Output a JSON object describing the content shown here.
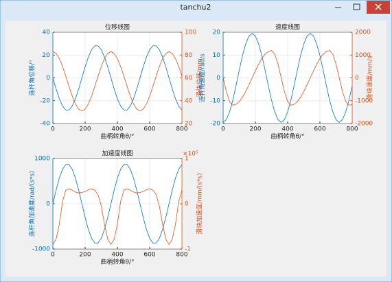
{
  "window": {
    "title": "tanchu2"
  },
  "chart_data": [
    {
      "type": "line",
      "title": "位移线图",
      "xlabel": "曲柄转角θ/°",
      "ylabel": "连杆角位移/°",
      "y2label": "滑块位移/mm",
      "x": [
        0,
        20,
        40,
        60,
        80,
        100,
        120,
        140,
        160,
        180,
        200,
        220,
        240,
        260,
        280,
        300,
        320,
        340,
        360,
        380,
        400,
        420,
        440,
        460,
        480,
        500,
        520,
        540,
        560,
        580,
        600,
        620,
        640,
        660,
        680,
        700,
        720,
        740,
        760,
        780,
        800
      ],
      "xlim": [
        0,
        800
      ],
      "xticks": [
        0,
        200,
        400,
        600,
        800
      ],
      "ylim": [
        -40,
        40
      ],
      "yticks": [
        -40,
        -20,
        0,
        20,
        40
      ],
      "y2lim": [
        20,
        100
      ],
      "y2ticks": [
        20,
        40,
        60,
        80,
        100
      ],
      "grid": true,
      "series": [
        {
          "color": "#0072bd",
          "values": [
            0,
            -9.7,
            -18.3,
            -24.7,
            -28.1,
            -28.1,
            -24.7,
            -18.3,
            -9.7,
            0,
            9.7,
            18.3,
            24.7,
            28.1,
            28.1,
            24.7,
            18.3,
            9.7,
            0,
            -9.7,
            -18.3,
            -24.7,
            -28.1,
            -28.1,
            -24.7,
            -18.3,
            -9.7,
            0,
            9.7,
            18.3,
            24.7,
            28.1,
            28.1,
            24.7,
            18.3,
            9.7,
            0,
            -9.7,
            -18.3,
            -24.7,
            -28.1
          ]
        },
        {
          "color": "#d95319",
          "axis": "y2",
          "values": [
            83,
            81.4,
            76.9,
            70,
            61.5,
            52.5,
            44,
            37.1,
            32.6,
            31,
            32.6,
            37.1,
            44,
            52.5,
            61.5,
            70,
            76.9,
            81.4,
            83,
            81.4,
            76.9,
            70,
            61.5,
            52.5,
            44,
            37.1,
            32.6,
            31,
            32.6,
            37.1,
            44,
            52.5,
            61.5,
            70,
            76.9,
            81.4,
            83,
            81.4,
            76.9,
            70,
            61.5
          ]
        }
      ]
    },
    {
      "type": "line",
      "title": "速度线图",
      "xlabel": "曲柄转角θ/°",
      "ylabel": "连杆角速度/rad/s",
      "y2label": "滑块速度/mm/s",
      "x": [
        0,
        20,
        40,
        60,
        80,
        100,
        120,
        140,
        160,
        180,
        200,
        220,
        240,
        260,
        280,
        300,
        320,
        340,
        360,
        380,
        400,
        420,
        440,
        460,
        480,
        500,
        520,
        540,
        560,
        580,
        600,
        620,
        640,
        660,
        680,
        700,
        720,
        740,
        760,
        780,
        800
      ],
      "xlim": [
        0,
        800
      ],
      "xticks": [
        0,
        200,
        400,
        600,
        800
      ],
      "ylim": [
        -20,
        20
      ],
      "yticks": [
        -20,
        -10,
        0,
        10,
        20
      ],
      "y2lim": [
        -2000,
        2000
      ],
      "y2ticks": [
        -2000,
        -1000,
        0,
        1000,
        2000
      ],
      "grid": true,
      "series": [
        {
          "color": "#0072bd",
          "values": [
            -19.5,
            -18.3,
            -14.9,
            -9.8,
            -3.4,
            3.4,
            9.8,
            14.9,
            18.3,
            19.5,
            18.3,
            14.9,
            9.8,
            3.4,
            -3.4,
            -9.8,
            -14.9,
            -18.3,
            -19.5,
            -18.3,
            -14.9,
            -9.8,
            -3.4,
            3.4,
            9.8,
            14.9,
            18.3,
            19.5,
            18.3,
            14.9,
            9.8,
            3.4,
            -3.4,
            -9.8,
            -14.9,
            -18.3,
            -19.5,
            -18.3,
            -14.9,
            -9.8,
            -3.4
          ]
        },
        {
          "color": "#d95319",
          "axis": "y2",
          "values": [
            0,
            -600,
            -1039,
            -1200,
            -1159,
            -1039,
            -849,
            -600,
            -311,
            0,
            311,
            600,
            849,
            1039,
            1159,
            1200,
            1039,
            600,
            0,
            -600,
            -1039,
            -1200,
            -1159,
            -1039,
            -849,
            -600,
            -311,
            0,
            311,
            600,
            849,
            1039,
            1159,
            1200,
            1039,
            600,
            0,
            -600,
            -1039,
            -1200,
            -1159
          ]
        }
      ]
    },
    {
      "type": "line",
      "title": "加速度线图",
      "xlabel": "曲柄转角θ/°",
      "ylabel": "连杆角加速度/rad/(s*s)",
      "y2label": "滑块加速度/mm/(s*s)",
      "y2exponent": "×10⁵",
      "x": [
        0,
        20,
        40,
        60,
        80,
        100,
        120,
        140,
        160,
        180,
        200,
        220,
        240,
        260,
        280,
        300,
        320,
        340,
        360,
        380,
        400,
        420,
        440,
        460,
        480,
        500,
        520,
        540,
        560,
        580,
        600,
        620,
        640,
        660,
        680,
        700,
        720,
        740,
        760,
        780,
        800
      ],
      "xlim": [
        0,
        800
      ],
      "xticks": [
        0,
        200,
        400,
        600,
        800
      ],
      "ylim": [
        -1000,
        1000
      ],
      "yticks": [
        -1000,
        0,
        1000
      ],
      "y2lim": [
        -1,
        1
      ],
      "y2ticks": [
        -1,
        0,
        1
      ],
      "grid": true,
      "series": [
        {
          "color": "#0072bd",
          "values": [
            0,
            301,
            566,
            762,
            867,
            867,
            762,
            566,
            301,
            0,
            -301,
            -566,
            -762,
            -867,
            -867,
            -762,
            -566,
            -301,
            0,
            301,
            566,
            762,
            867,
            867,
            762,
            566,
            301,
            0,
            -301,
            -566,
            -762,
            -867,
            -867,
            -762,
            -566,
            -301,
            0,
            301,
            566,
            762,
            867
          ]
        },
        {
          "color": "#d95319",
          "axis": "y2",
          "values": [
            -0.9,
            -0.78,
            -0.45,
            0.05,
            0.3,
            0.33,
            0.3,
            0.26,
            0.24,
            0.25,
            0.27,
            0.31,
            0.33,
            0.3,
            0.2,
            -0.05,
            -0.45,
            -0.78,
            -0.9,
            -0.78,
            -0.45,
            0.05,
            0.3,
            0.33,
            0.3,
            0.26,
            0.24,
            0.25,
            0.27,
            0.31,
            0.33,
            0.3,
            0.2,
            -0.05,
            -0.45,
            -0.78,
            -0.9,
            -0.78,
            -0.45,
            0.05,
            0.3
          ]
        }
      ]
    }
  ]
}
